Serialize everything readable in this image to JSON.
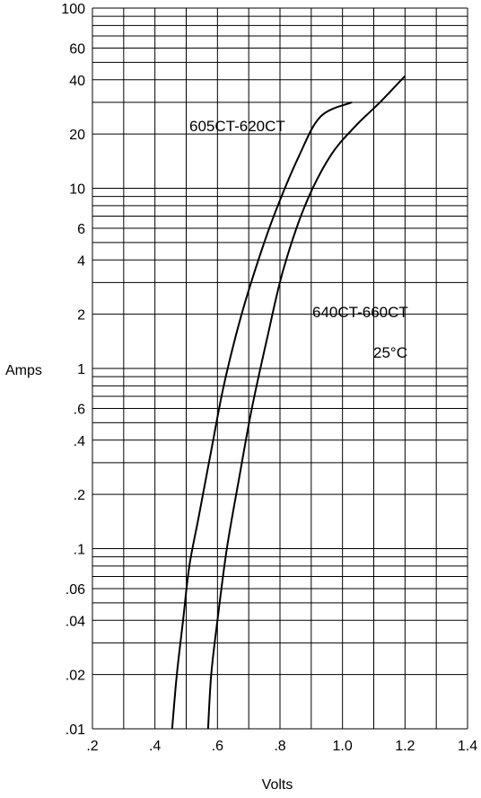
{
  "chart_data": {
    "type": "line",
    "title": "",
    "xlabel": "Volts",
    "ylabel": "Amps",
    "xlim": [
      0.2,
      1.4
    ],
    "ylim": [
      0.01,
      100
    ],
    "x_scale": "linear",
    "y_scale": "log",
    "grid": true,
    "x_ticks": [
      ".2",
      ".4",
      ".6",
      ".8",
      "1.0",
      "1.2",
      "1.4"
    ],
    "y_ticks": [
      "100",
      "60",
      "40",
      "20",
      "10",
      "6",
      "4",
      "2",
      "1",
      ".6",
      ".4",
      ".2",
      ".1",
      ".06",
      ".04",
      ".02",
      ".01"
    ],
    "annotations": [
      "25°C"
    ],
    "series": [
      {
        "name": "605CT-620CT",
        "x": [
          0.455,
          0.47,
          0.49,
          0.51,
          0.54,
          0.58,
          0.62,
          0.67,
          0.72,
          0.78,
          0.86,
          0.93,
          1.03
        ],
        "y": [
          0.01,
          0.02,
          0.04,
          0.08,
          0.15,
          0.35,
          0.8,
          1.8,
          3.5,
          7,
          15,
          25,
          30
        ]
      },
      {
        "name": "640CT-660CT",
        "x": [
          0.57,
          0.58,
          0.6,
          0.63,
          0.67,
          0.71,
          0.76,
          0.81,
          0.88,
          0.96,
          1.04,
          1.12,
          1.2
        ],
        "y": [
          0.01,
          0.02,
          0.04,
          0.1,
          0.25,
          0.6,
          1.5,
          3.5,
          8,
          15,
          22,
          30,
          42
        ]
      }
    ]
  }
}
